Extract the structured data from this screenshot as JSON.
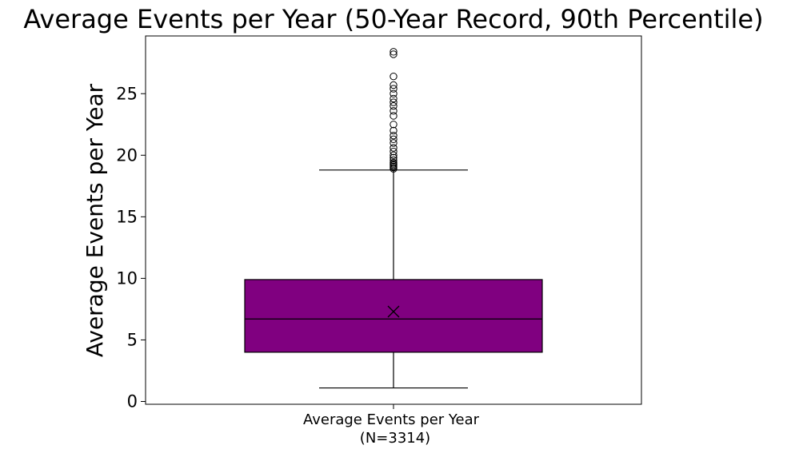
{
  "chart_data": {
    "type": "box",
    "title": "Average Events per Year (50-Year Record, 90th Percentile)",
    "ylabel": "Average Events per Year",
    "xlabel": "",
    "category": "Average Events per Year",
    "category_note": "(N=3314)",
    "ylim": [
      -0.3,
      29.5
    ],
    "yticks": [
      0,
      5,
      10,
      15,
      20,
      25
    ],
    "grid": false,
    "box_color": "#800080",
    "stats": {
      "whisker_low": 1.1,
      "q1": 4.0,
      "median": 6.7,
      "mean": 7.3,
      "q3": 9.9,
      "whisker_high": 18.8
    },
    "outliers": [
      18.9,
      19.0,
      19.1,
      19.2,
      19.3,
      19.4,
      19.6,
      19.8,
      20.0,
      20.3,
      20.6,
      21.0,
      21.3,
      21.6,
      22.0,
      22.5,
      23.2,
      23.6,
      24.0,
      24.3,
      24.6,
      25.0,
      25.4,
      25.7,
      26.4,
      28.2,
      28.4
    ]
  }
}
